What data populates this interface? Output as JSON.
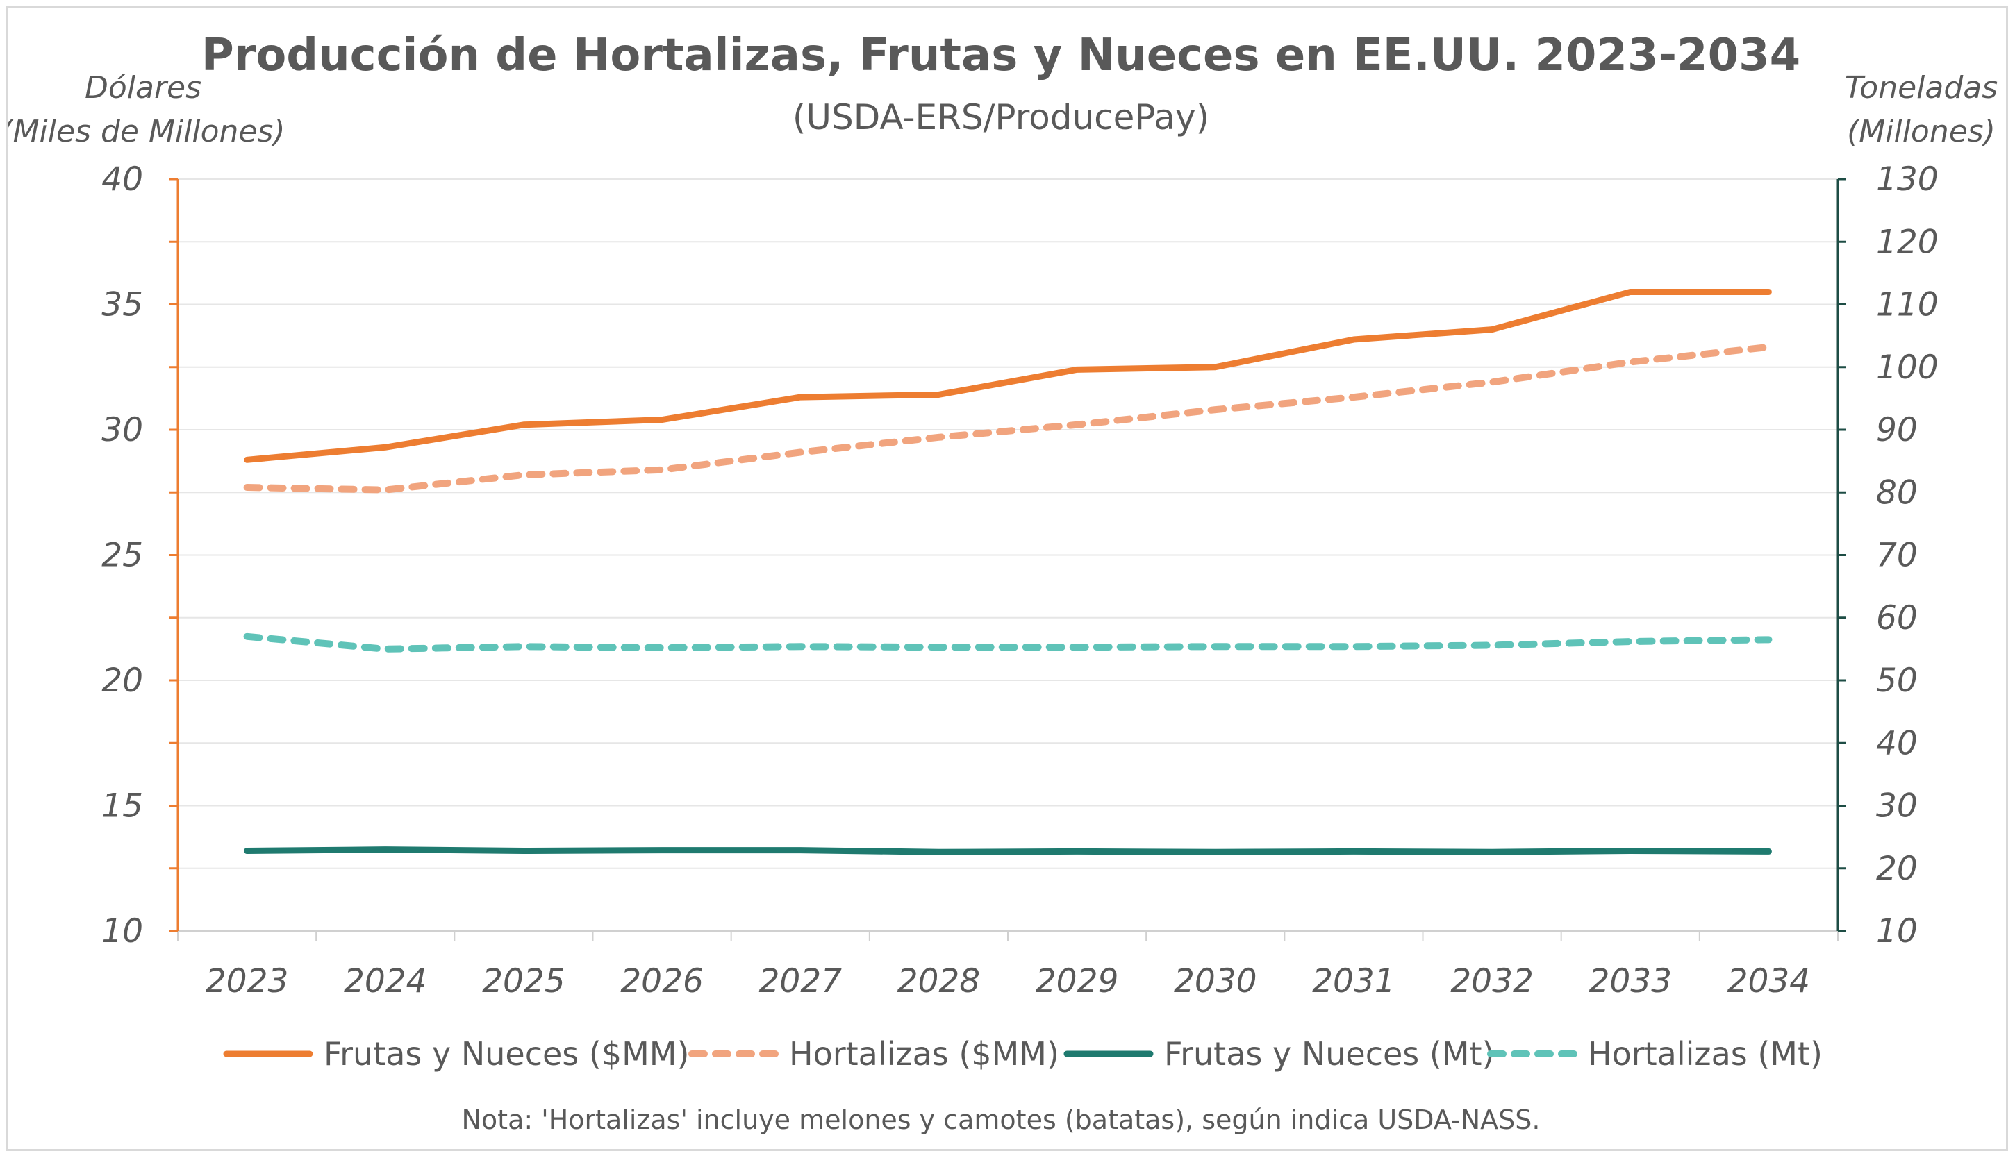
{
  "colors": {
    "frutas_usd": "#ED7D31",
    "hortalizas_usd": "#F1A47E",
    "frutas_mt": "#1F7A6F",
    "hortalizas_mt": "#5FC3B8",
    "left_axis": "#ED7D31",
    "right_axis": "#1E4D45",
    "grid": "#e6e6e6",
    "text": "#595959"
  },
  "chart_data": {
    "type": "line",
    "title": "Producción de Hortalizas, Frutas y Nueces en EE.UU. 2023-2034",
    "subtitle": "(USDA-ERS/ProducePay)",
    "ylabel_left_line1": "Dólares",
    "ylabel_left_line2": "(Miles de Millones)",
    "ylabel_right_line1": "Toneladas",
    "ylabel_right_line2": "(Millones)",
    "x": [
      "2023",
      "2024",
      "2025",
      "2026",
      "2027",
      "2028",
      "2029",
      "2030",
      "2031",
      "2032",
      "2033",
      "2034"
    ],
    "ylim_left": [
      10,
      40
    ],
    "yticks_left": [
      10,
      15,
      20,
      25,
      30,
      35,
      40
    ],
    "ylim_right": [
      10,
      130
    ],
    "yticks_right": [
      10,
      20,
      30,
      40,
      50,
      60,
      70,
      80,
      90,
      100,
      110,
      120,
      130
    ],
    "grid": true,
    "legend_position": "bottom",
    "series": [
      {
        "name": "Frutas y Nueces ($MM)",
        "axis": "left",
        "style": "solid",
        "color": "#ED7D31",
        "values": [
          28.8,
          29.3,
          30.2,
          30.4,
          31.3,
          31.4,
          32.4,
          32.5,
          33.6,
          34.0,
          35.5,
          35.5
        ]
      },
      {
        "name": "Hortalizas ($MM)",
        "axis": "left",
        "style": "dashed",
        "color": "#F1A47E",
        "values": [
          27.7,
          27.6,
          28.2,
          28.4,
          29.1,
          29.7,
          30.2,
          30.8,
          31.3,
          31.9,
          32.7,
          33.3
        ]
      },
      {
        "name": "Frutas y Nueces (Mt)",
        "axis": "right",
        "style": "solid",
        "color": "#1F7A6F",
        "values": [
          22.8,
          23.0,
          22.8,
          22.9,
          22.9,
          22.6,
          22.7,
          22.6,
          22.7,
          22.6,
          22.8,
          22.7
        ]
      },
      {
        "name": "Hortalizas (Mt)",
        "axis": "right",
        "style": "dashed",
        "color": "#5FC3B8",
        "values": [
          57.0,
          55.0,
          55.4,
          55.2,
          55.4,
          55.3,
          55.3,
          55.4,
          55.4,
          55.6,
          56.2,
          56.5
        ]
      }
    ],
    "note": "Nota: 'Hortalizas' incluye melones y camotes (batatas), según indica USDA-NASS."
  }
}
